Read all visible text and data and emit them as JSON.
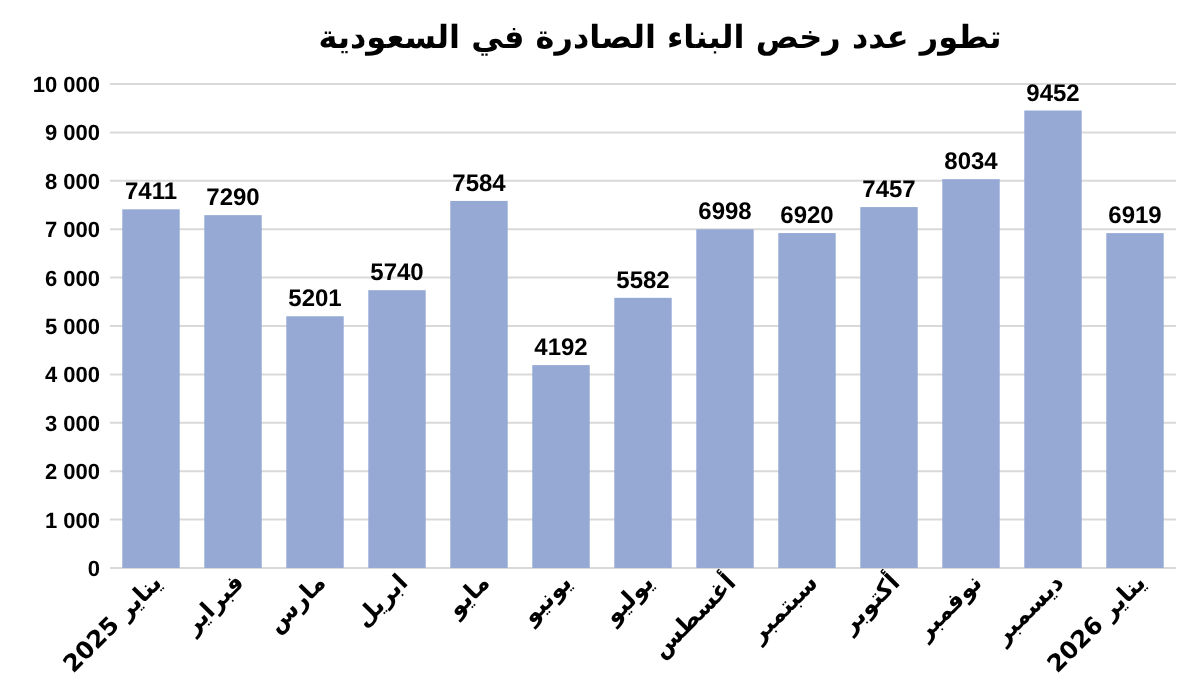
{
  "chart_data": {
    "type": "bar",
    "title": "تطور عدد رخص البناء الصادرة في السعودية",
    "categories": [
      "يناير 2025",
      "فبراير",
      "مارس",
      "ابريل",
      "مايو",
      "يونيو",
      "يوليو",
      "أغسطس",
      "سبتمبر",
      "أكتوبر",
      "نوفمبر",
      "ديسمبر",
      "يناير 2026"
    ],
    "values": [
      7411,
      7290,
      5201,
      5740,
      7584,
      4192,
      5582,
      6998,
      6920,
      7457,
      8034,
      9452,
      6919
    ],
    "color": "#95a9d4",
    "ylim": [
      0,
      10000
    ],
    "yticks": [
      0,
      {
        "value": 1000,
        "label": "1 000"
      },
      {
        "value": 2000,
        "label": "2 000"
      },
      {
        "value": 3000,
        "label": "3 000"
      },
      {
        "value": 4000,
        "label": "4 000"
      },
      {
        "value": 5000,
        "label": "5 000"
      },
      {
        "value": 6000,
        "label": "6 000"
      },
      {
        "value": 7000,
        "label": "7 000"
      },
      {
        "value": 8000,
        "label": "8 000"
      },
      {
        "value": 9000,
        "label": "9 000"
      },
      {
        "value": 10000,
        "label": "10 000"
      }
    ],
    "grid": "y",
    "data_labels": true
  }
}
